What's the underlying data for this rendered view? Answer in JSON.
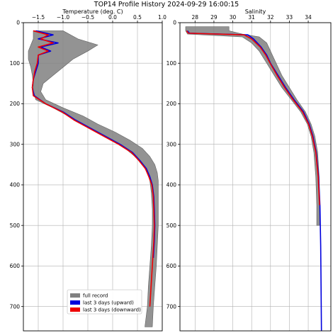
{
  "chart_data": [
    {
      "type": "line",
      "title": "TOP14 Profile History 2024-09-29 16:00:15",
      "panels": [
        {
          "id": "temperature",
          "xlabel": "Temperature (deg. C)",
          "x_axis_position": "top",
          "xlim": [
            -1.8,
            1.0
          ],
          "xticks": [
            -1.5,
            -1.0,
            -0.5,
            0.0,
            0.5,
            1.0
          ],
          "xtick_labels": [
            "−1.5",
            "−1.0",
            "−0.5",
            "0.0",
            "0.5",
            "1.0"
          ],
          "ylim": [
            760,
            0
          ],
          "yticks": [
            0,
            100,
            200,
            300,
            400,
            500,
            600,
            700
          ],
          "ytick_labels": [
            "0",
            "100",
            "200",
            "300",
            "400",
            "500",
            "600",
            "700"
          ],
          "grid": true,
          "series": [
            {
              "name": "full record",
              "color": "#808080",
              "kind": "band",
              "depth": [
                20,
                40,
                55,
                70,
                90,
                110,
                130,
                150,
                170,
                190,
                210,
                230,
                250,
                270,
                290,
                310,
                330,
                350,
                370,
                390,
                420,
                460,
                500,
                550,
                600,
                650,
                700,
                750
              ],
              "x_min": [
                -1.6,
                -1.6,
                -1.65,
                -1.7,
                -1.7,
                -1.65,
                -1.62,
                -1.6,
                -1.6,
                -1.55,
                -1.2,
                -0.9,
                -0.6,
                -0.3,
                0.0,
                0.25,
                0.45,
                0.6,
                0.7,
                0.75,
                0.78,
                0.8,
                0.8,
                0.78,
                0.75,
                0.72,
                0.7,
                0.65
              ],
              "x_max": [
                -1.0,
                -0.7,
                -0.3,
                -0.5,
                -0.8,
                -1.0,
                -1.2,
                -1.4,
                -1.45,
                -1.35,
                -1.0,
                -0.6,
                -0.3,
                0.05,
                0.35,
                0.6,
                0.75,
                0.85,
                0.9,
                0.92,
                0.92,
                0.92,
                0.92,
                0.9,
                0.88,
                0.85,
                0.82,
                0.8
              ]
            },
            {
              "name": "last 3 days (upward)",
              "color": "#0000dd",
              "depth": [
                20,
                30,
                40,
                50,
                60,
                70,
                80,
                100,
                120,
                140,
                160,
                180,
                200,
                220,
                240,
                260,
                280,
                300,
                320,
                340,
                360,
                380,
                400,
                430,
                460,
                500,
                540,
                580
              ],
              "x": [
                -1.55,
                -1.2,
                -1.5,
                -1.1,
                -1.45,
                -1.25,
                -1.5,
                -1.5,
                -1.55,
                -1.6,
                -1.62,
                -1.58,
                -1.35,
                -1.0,
                -0.75,
                -0.45,
                -0.15,
                0.15,
                0.4,
                0.55,
                0.68,
                0.75,
                0.8,
                0.83,
                0.84,
                0.85,
                0.84,
                0.82
              ]
            },
            {
              "name": "last 3 days (downward)",
              "color": "#ee0000",
              "depth": [
                20,
                30,
                40,
                50,
                60,
                70,
                80,
                100,
                120,
                140,
                160,
                180,
                200,
                220,
                240,
                260,
                280,
                300,
                320,
                340,
                360,
                380,
                400,
                430,
                460,
                500,
                540,
                580,
                620,
                660,
                700
              ],
              "x": [
                -1.6,
                -1.3,
                -1.45,
                -1.2,
                -1.5,
                -1.3,
                -1.5,
                -1.52,
                -1.57,
                -1.6,
                -1.62,
                -1.6,
                -1.35,
                -1.02,
                -0.78,
                -0.48,
                -0.18,
                0.12,
                0.38,
                0.53,
                0.66,
                0.73,
                0.79,
                0.82,
                0.83,
                0.84,
                0.83,
                0.81,
                0.79,
                0.77,
                0.75
              ]
            }
          ]
        },
        {
          "id": "salinity",
          "xlabel": "Salinity",
          "x_axis_position": "top",
          "xlim": [
            27.2,
            35.2
          ],
          "xticks": [
            28,
            29,
            30,
            31,
            32,
            33,
            34
          ],
          "xtick_labels": [
            "28",
            "29",
            "30",
            "31",
            "32",
            "33",
            "34"
          ],
          "ylim": [
            760,
            0
          ],
          "yticks": [
            0,
            100,
            200,
            300,
            400,
            500,
            600,
            700
          ],
          "ytick_labels": [
            "0",
            "100",
            "200",
            "300",
            "400",
            "500",
            "600",
            "700"
          ],
          "grid": true,
          "series": [
            {
              "name": "full record",
              "color": "#808080",
              "kind": "band",
              "depth": [
                10,
                20,
                28,
                35,
                50,
                70,
                100,
                130,
                160,
                190,
                220,
                250,
                280,
                320,
                380,
                450,
                500
              ],
              "x_min": [
                27.5,
                27.5,
                27.6,
                30.5,
                31.0,
                31.4,
                31.8,
                32.2,
                32.6,
                33.1,
                33.6,
                33.95,
                34.15,
                34.3,
                34.4,
                34.45,
                34.45
              ],
              "x_max": [
                29.8,
                29.8,
                30.5,
                31.4,
                31.8,
                32.0,
                32.3,
                32.6,
                33.0,
                33.4,
                33.85,
                34.15,
                34.35,
                34.5,
                34.58,
                34.6,
                34.6
              ]
            },
            {
              "name": "last 3 days (upward)",
              "color": "#0000dd",
              "depth": [
                20,
                26,
                30,
                40,
                60,
                80,
                100,
                130,
                160,
                190,
                220,
                250,
                280,
                320,
                380,
                450,
                550,
                650,
                760
              ],
              "x": [
                27.6,
                27.7,
                30.8,
                31.1,
                31.5,
                31.8,
                32.0,
                32.4,
                32.8,
                33.25,
                33.75,
                34.05,
                34.25,
                34.42,
                34.55,
                34.62,
                34.66,
                34.68,
                34.7
              ]
            },
            {
              "name": "last 3 days (downward)",
              "color": "#ee0000",
              "depth": [
                20,
                26,
                30,
                40,
                60,
                80,
                100,
                130,
                160,
                190,
                220,
                250,
                280,
                320,
                380,
                450
              ],
              "x": [
                27.55,
                27.65,
                30.6,
                31.0,
                31.45,
                31.75,
                31.98,
                32.35,
                32.75,
                33.2,
                33.7,
                34.02,
                34.22,
                34.4,
                34.53,
                34.6
              ]
            }
          ]
        }
      ],
      "legend": {
        "placement": "lower-center of left panel",
        "entries": [
          "full record",
          "last 3 days (upward)",
          "last 3 days (downward)"
        ]
      }
    }
  ]
}
